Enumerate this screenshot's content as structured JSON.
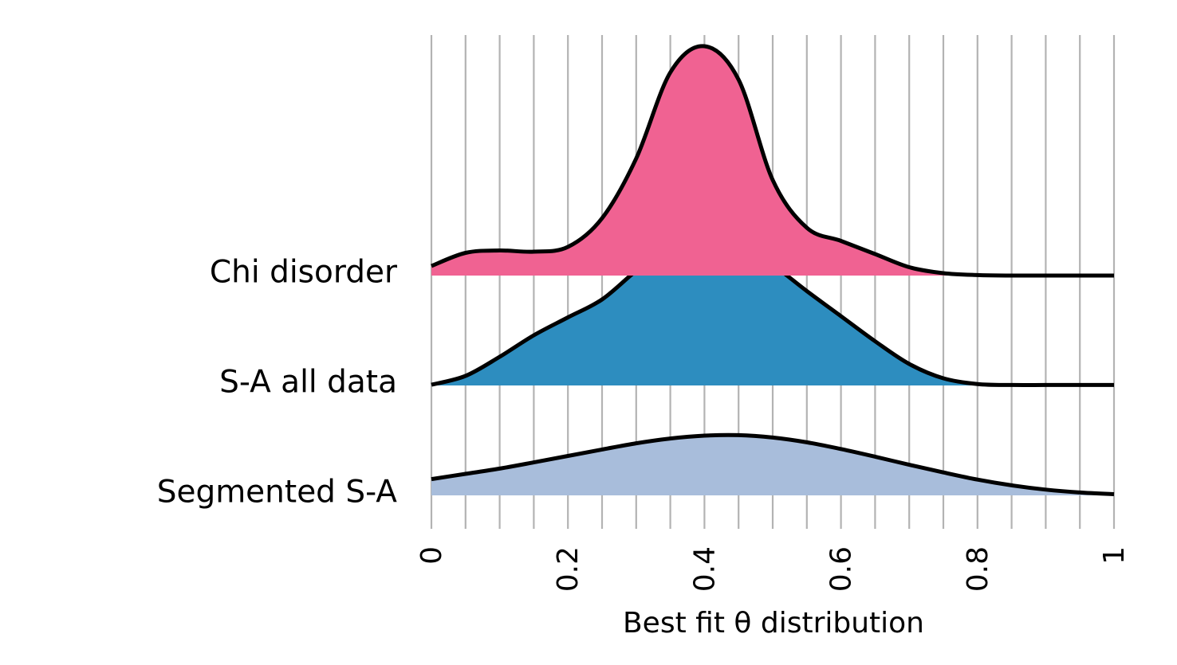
{
  "chart_data": {
    "type": "area",
    "subtype": "ridgeline",
    "title": "",
    "xlabel": "Best fit θ distribution",
    "ylabel": "",
    "xlim": [
      0,
      1
    ],
    "x_ticks": [
      0,
      0.2,
      0.4,
      0.6,
      0.8,
      1
    ],
    "x_tick_labels": [
      "0",
      "0.2",
      "0.4",
      "0.6",
      "0.8",
      "1"
    ],
    "x_grid_step": 0.05,
    "grid": true,
    "legend": "none",
    "density_scale": [
      0,
      7
    ],
    "x": [
      0,
      0.05,
      0.1,
      0.15,
      0.2,
      0.25,
      0.3,
      0.35,
      0.4,
      0.45,
      0.5,
      0.55,
      0.6,
      0.65,
      0.7,
      0.75,
      0.8,
      0.85,
      0.9,
      0.95,
      1
    ],
    "series": [
      {
        "name": "Segmented S-A",
        "color": "#a8bddb",
        "values": [
          0.68,
          0.9,
          1.12,
          1.38,
          1.65,
          1.92,
          2.18,
          2.38,
          2.5,
          2.52,
          2.42,
          2.22,
          1.94,
          1.62,
          1.28,
          0.96,
          0.66,
          0.42,
          0.24,
          0.12,
          0.05
        ]
      },
      {
        "name": "S-A all data",
        "color": "#2d8dbf",
        "values": [
          0.03,
          0.4,
          1.2,
          2.1,
          2.85,
          3.6,
          4.8,
          5.85,
          6.35,
          5.95,
          5.05,
          3.95,
          2.9,
          1.85,
          0.9,
          0.3,
          0.06,
          0.02,
          0.02,
          0.02,
          0.02
        ]
      },
      {
        "name": "Chi disorder",
        "color": "#f06292",
        "values": [
          0.4,
          0.95,
          1.05,
          1.0,
          1.2,
          2.4,
          4.9,
          8.5,
          9.6,
          8.2,
          4.0,
          2.0,
          1.45,
          0.9,
          0.35,
          0.1,
          0.02,
          0.0,
          0.0,
          0.0,
          0.0
        ]
      }
    ]
  }
}
